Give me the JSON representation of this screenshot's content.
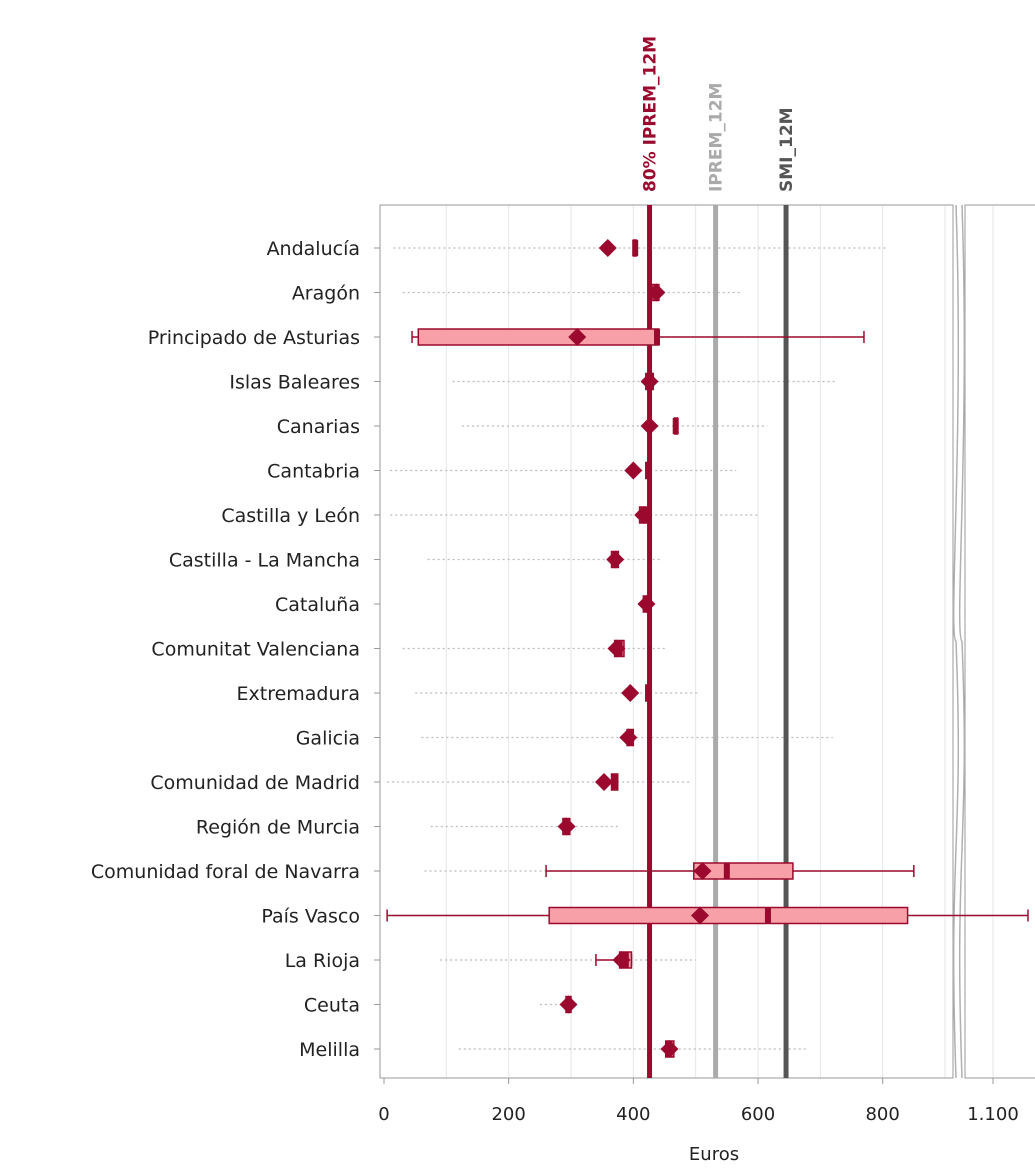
{
  "chart_data": {
    "type": "box",
    "orientation": "horizontal",
    "xlabel": "Euros",
    "x_axis_break": true,
    "xlim_main": [
      0,
      900
    ],
    "xlim_break_panel": [
      1060,
      1160
    ],
    "x_ticks": [
      {
        "value": 0,
        "label": "0"
      },
      {
        "value": 200,
        "label": "200"
      },
      {
        "value": 400,
        "label": "400"
      },
      {
        "value": 600,
        "label": "600"
      },
      {
        "value": 800,
        "label": "800"
      },
      {
        "value": 1100,
        "label": "1.100"
      }
    ],
    "grid": true,
    "reference_lines": [
      {
        "label": "80% IPREM_12M",
        "value": 426,
        "color": "#9b0a2e"
      },
      {
        "label": "IPREM_12M",
        "value": 532,
        "color": "#aaaaaa"
      },
      {
        "label": "SMI_12M",
        "value": 645,
        "color": "#555555"
      }
    ],
    "colors": {
      "box_fill": "#f7a0a7",
      "box_stroke": "#9b0a2e",
      "mean_marker": "#9b0a2e",
      "outlier": "#bbbbbb",
      "grid": "#e6e6e6"
    },
    "categories": [
      "Andalucía",
      "Aragón",
      "Principado de Asturias",
      "Islas Baleares",
      "Canarias",
      "Cantabria",
      "Castilla y León",
      "Castilla - La Mancha",
      "Cataluña",
      "Comunitat Valenciana",
      "Extremadura",
      "Galicia",
      "Comunidad de Madrid",
      "Región de Murcia",
      "Comunidad foral de Navarra",
      "País Vasco",
      "La Rioja",
      "Ceuta",
      "Melilla"
    ],
    "boxes": [
      {
        "category": "Andalucía",
        "q1": 400,
        "median": 403,
        "q3": 405,
        "whisker_low": 400,
        "whisker_high": 405,
        "mean": 359,
        "range": [
          15,
          805
        ]
      },
      {
        "category": "Aragón",
        "q1": 430,
        "median": 437,
        "q3": 441,
        "whisker_low": 430,
        "whisker_high": 441,
        "mean": 437,
        "range": [
          30,
          575
        ]
      },
      {
        "category": "Principado de Asturias",
        "q1": 55,
        "median": 438,
        "q3": 441,
        "whisker_low": 45,
        "whisker_high": 770,
        "mean": 310,
        "range": [
          45,
          770
        ]
      },
      {
        "category": "Islas Baleares",
        "q1": 420,
        "median": 426,
        "q3": 432,
        "whisker_low": 420,
        "whisker_high": 432,
        "mean": 426,
        "range": [
          110,
          725
        ]
      },
      {
        "category": "Canarias",
        "q1": 466,
        "median": 468,
        "q3": 471,
        "whisker_low": 466,
        "whisker_high": 471,
        "mean": 426,
        "range": [
          125,
          615
        ]
      },
      {
        "category": "Cantabria",
        "q1": 420,
        "median": 424,
        "q3": 427,
        "whisker_low": 420,
        "whisker_high": 427,
        "mean": 400,
        "range": [
          10,
          565
        ]
      },
      {
        "category": "Castilla y León",
        "q1": 410,
        "median": 416,
        "q3": 422,
        "whisker_low": 410,
        "whisker_high": 422,
        "mean": 416,
        "range": [
          10,
          600
        ]
      },
      {
        "category": "Castilla - La Mancha",
        "q1": 365,
        "median": 371,
        "q3": 376,
        "whisker_low": 365,
        "whisker_high": 376,
        "mean": 371,
        "range": [
          70,
          445
        ]
      },
      {
        "category": "Cataluña",
        "q1": 416,
        "median": 421,
        "q3": 426,
        "whisker_low": 416,
        "whisker_high": 426,
        "mean": 421,
        "range": [
          416,
          426
        ]
      },
      {
        "category": "Comunitat Valenciana",
        "q1": 370,
        "median": 378,
        "q3": 385,
        "whisker_low": 370,
        "whisker_high": 385,
        "mean": 373,
        "range": [
          30,
          455
        ]
      },
      {
        "category": "Extremadura",
        "q1": 420,
        "median": 424,
        "q3": 427,
        "whisker_low": 420,
        "whisker_high": 427,
        "mean": 395,
        "range": [
          50,
          505
        ]
      },
      {
        "category": "Galicia",
        "q1": 390,
        "median": 395,
        "q3": 400,
        "whisker_low": 390,
        "whisker_high": 400,
        "mean": 392,
        "range": [
          60,
          720
        ]
      },
      {
        "category": "Comunidad de Madrid",
        "q1": 365,
        "median": 370,
        "q3": 375,
        "whisker_low": 365,
        "whisker_high": 375,
        "mean": 353,
        "range": [
          5,
          490
        ]
      },
      {
        "category": "Región de Murcia",
        "q1": 287,
        "median": 293,
        "q3": 298,
        "whisker_low": 287,
        "whisker_high": 298,
        "mean": 293,
        "range": [
          75,
          380
        ]
      },
      {
        "category": "Comunidad foral de Navarra",
        "q1": 497,
        "median": 550,
        "q3": 656,
        "whisker_low": 260,
        "whisker_high": 850,
        "mean": 511,
        "range": [
          65,
          850
        ]
      },
      {
        "category": "País Vasco",
        "q1": 265,
        "median": 616,
        "q3": 840,
        "whisker_low": 5,
        "whisker_high": 1150,
        "mean": 507,
        "range": [
          5,
          1150
        ]
      },
      {
        "category": "La Rioja",
        "q1": 378,
        "median": 388,
        "q3": 397,
        "whisker_low": 340,
        "whisker_high": 397,
        "mean": 381,
        "range": [
          90,
          500
        ]
      },
      {
        "category": "Ceuta",
        "q1": 292,
        "median": 296,
        "q3": 300,
        "whisker_low": 292,
        "whisker_high": 300,
        "mean": 296,
        "range": [
          250,
          300
        ]
      },
      {
        "category": "Melilla",
        "q1": 452,
        "median": 458,
        "q3": 465,
        "whisker_low": 452,
        "whisker_high": 465,
        "mean": 458,
        "range": [
          120,
          680
        ]
      }
    ]
  }
}
